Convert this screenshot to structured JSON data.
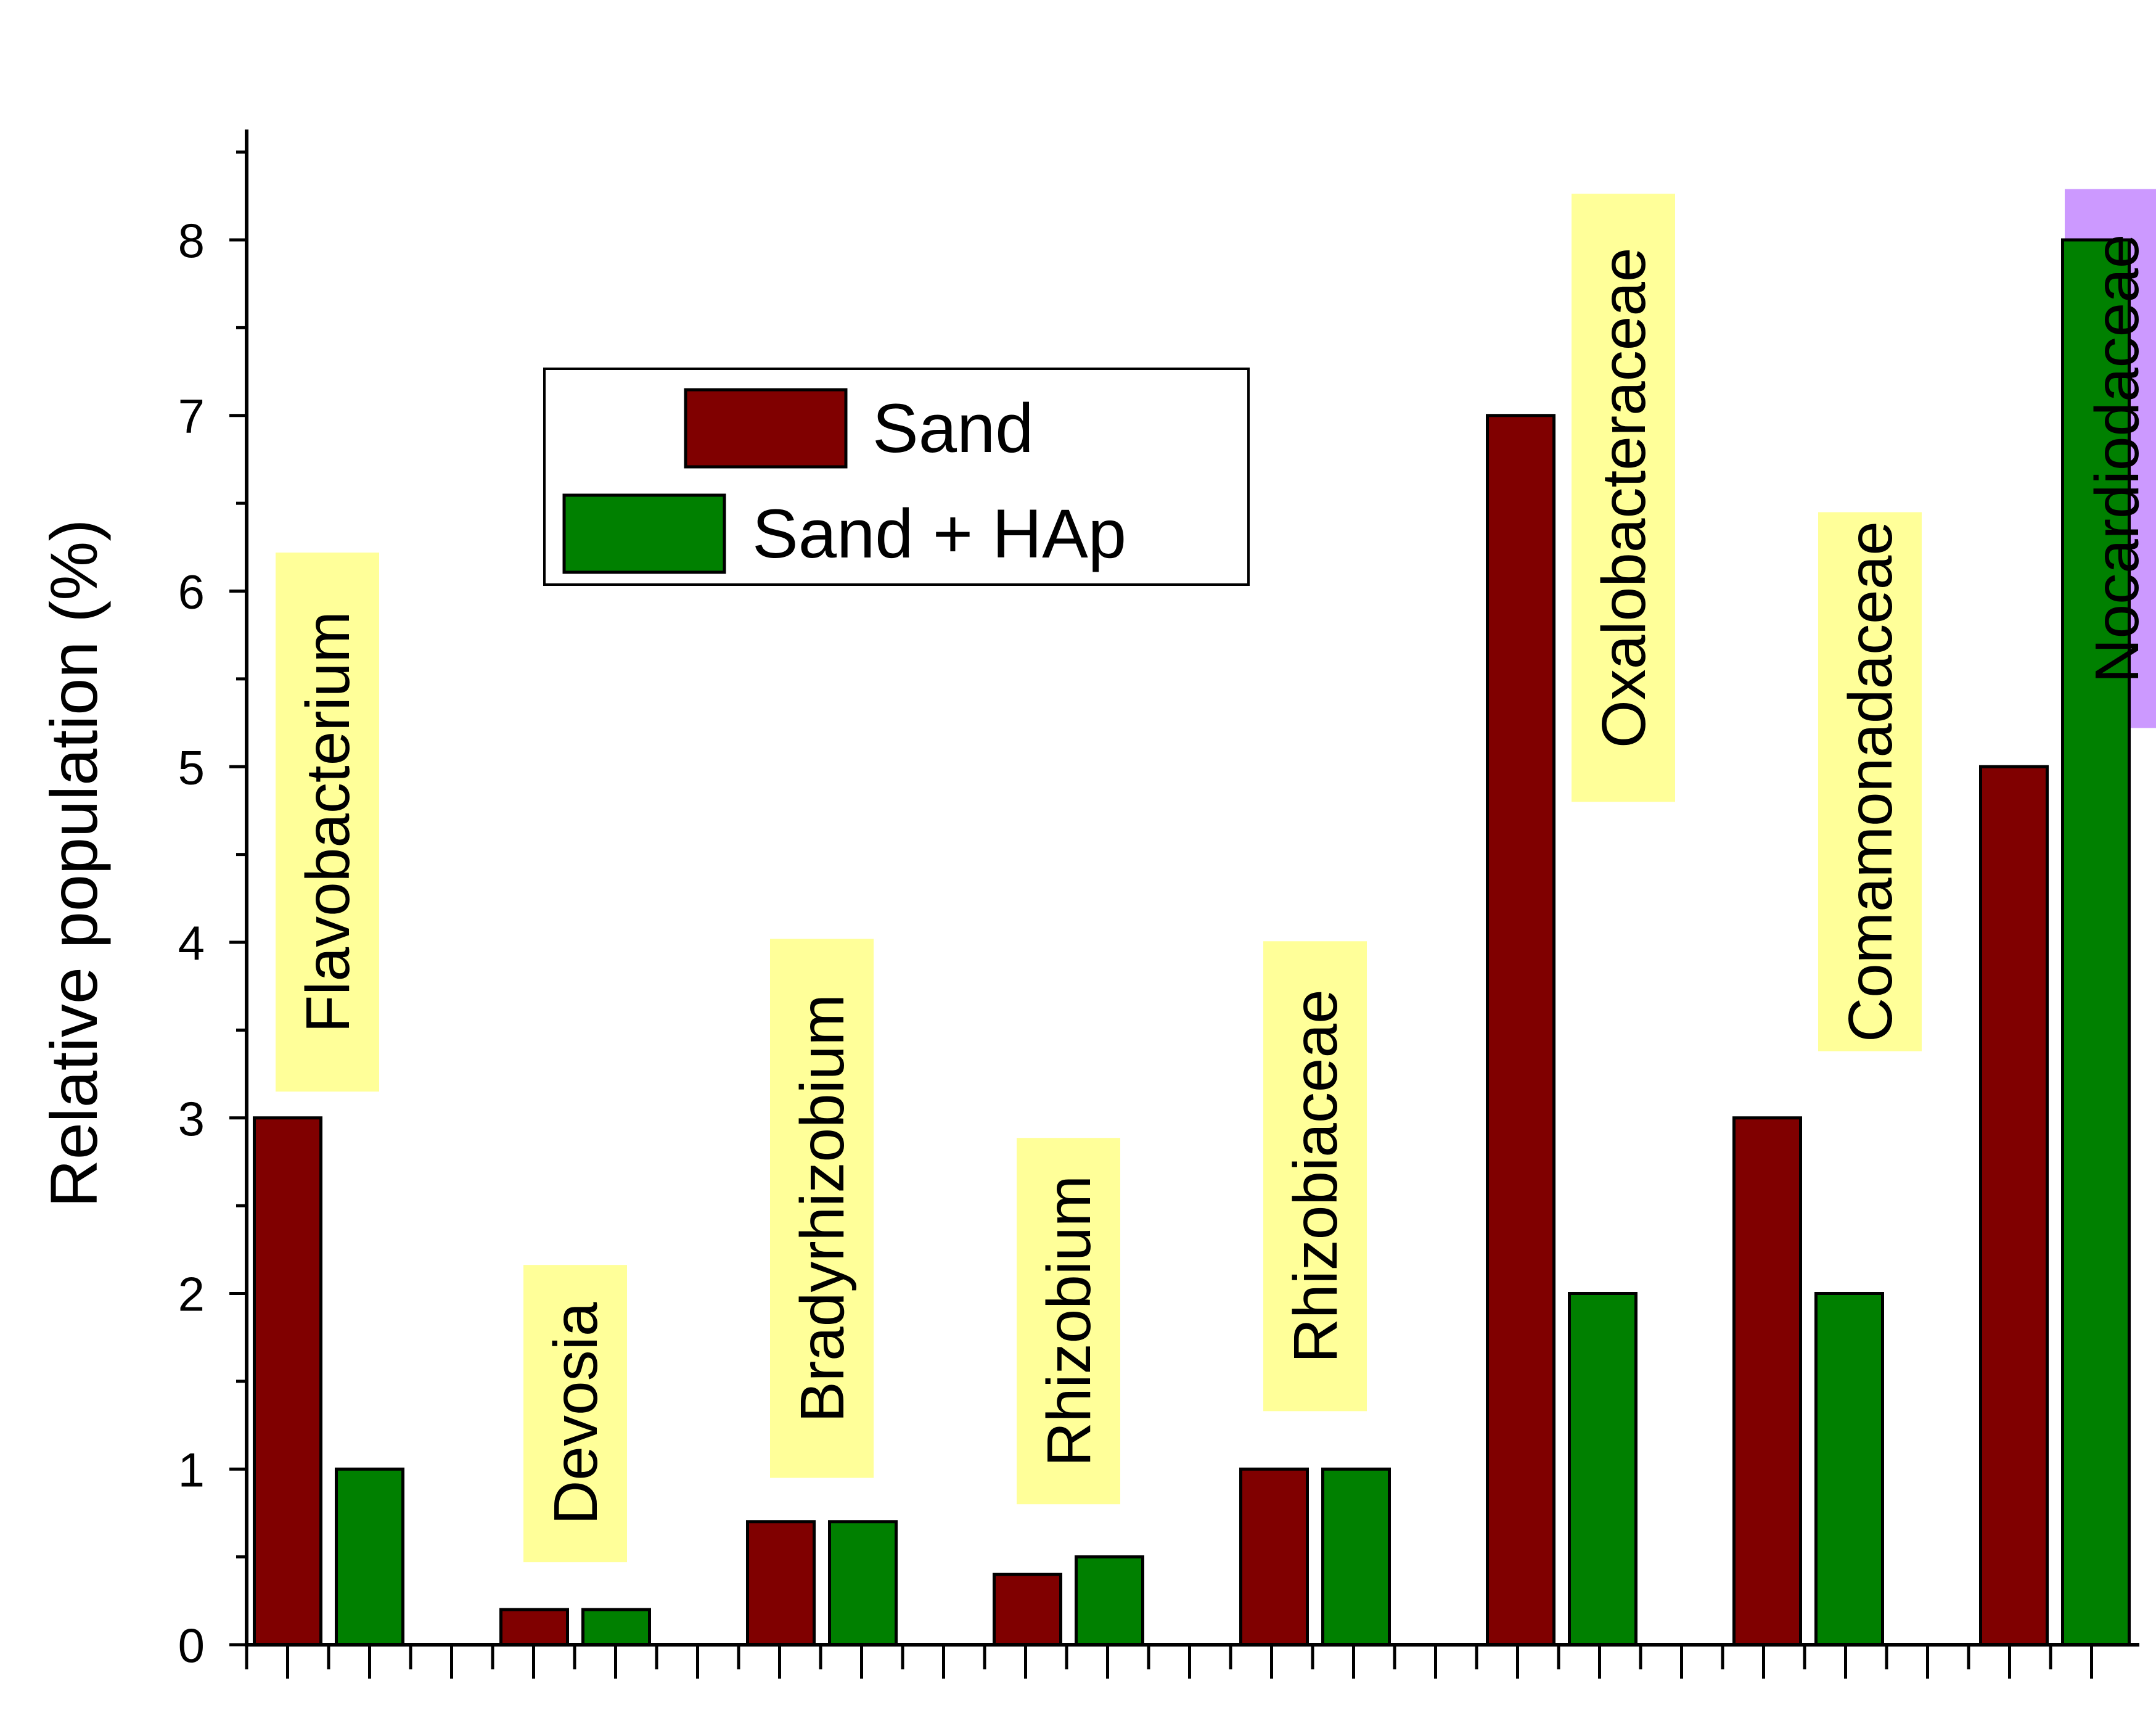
{
  "chart_data": {
    "type": "bar",
    "ylabel": "Relative population (%)",
    "xlabel": "",
    "ylim": [
      0,
      8.6
    ],
    "yticks": [
      0,
      1,
      2,
      3,
      4,
      5,
      6,
      7,
      8
    ],
    "grid": false,
    "legend_position": "top-center",
    "categories": [
      "Flavobacterium",
      "Devosia",
      "Bradyrhizobium",
      "Rhizobium",
      "Rhizobiaceae",
      "Oxalobacteraceae",
      "Comamonadaceae",
      "Nocardiodaceae"
    ],
    "label_highlight": [
      "yellow",
      "yellow",
      "yellow",
      "yellow",
      "yellow",
      "yellow",
      "yellow",
      "purple"
    ],
    "series": [
      {
        "name": "Sand",
        "color": "#800000",
        "values": [
          3,
          0.2,
          0.7,
          0.4,
          1,
          7,
          3,
          5
        ]
      },
      {
        "name": "Sand + HAp",
        "color": "#008000",
        "values": [
          1,
          0.2,
          0.7,
          0.5,
          1,
          2,
          2,
          8
        ]
      }
    ]
  },
  "colors": {
    "highlight_yellow": "#ffff99",
    "highlight_purple": "#cc99ff"
  }
}
